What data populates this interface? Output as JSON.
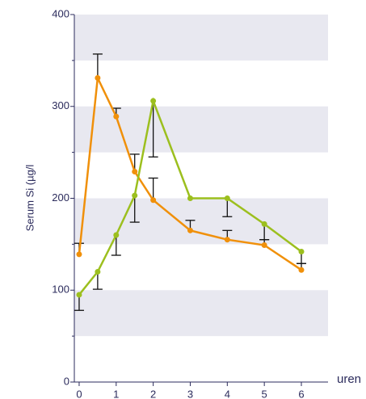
{
  "chart_data": {
    "type": "line",
    "ylabel": "Serum Si (µg/l",
    "xlabel": "uren",
    "x": [
      0,
      0.5,
      1,
      1.5,
      2,
      3,
      4,
      5,
      6
    ],
    "series": [
      {
        "color": "#f0900a",
        "values": [
          139,
          331,
          289,
          229,
          198,
          165,
          155,
          149,
          122
        ],
        "errors": [
          12,
          26,
          9,
          19,
          24,
          11,
          10,
          6,
          7
        ],
        "error_direction": "up"
      },
      {
        "color": "#9cbf1e",
        "values": [
          95,
          120,
          160,
          203,
          306,
          200,
          200,
          172,
          142
        ],
        "errors": [
          17,
          19,
          22,
          29,
          61,
          null,
          20,
          17,
          13
        ],
        "error_direction": "down"
      }
    ],
    "xlim": [
      -0.13,
      6.72
    ],
    "ylim": [
      0,
      400
    ],
    "xticks": [
      0,
      1,
      2,
      3,
      4,
      5,
      6
    ],
    "yticks": [
      0,
      100,
      200,
      300,
      400
    ]
  }
}
